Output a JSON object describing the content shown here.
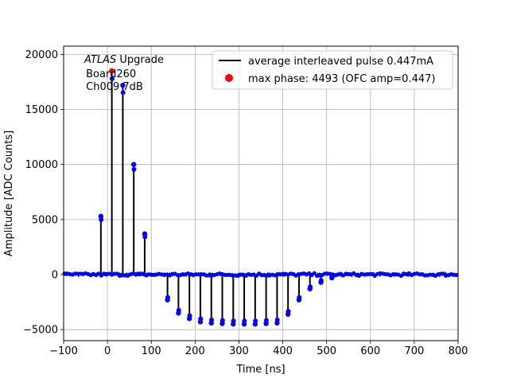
{
  "chart_data": {
    "type": "line",
    "xlabel": "Time [ns]",
    "ylabel": "Amplitude [ADC Counts]",
    "xlim": [
      -100,
      800
    ],
    "ylim": [
      -6000,
      20750
    ],
    "xticks": [
      -100,
      0,
      100,
      200,
      300,
      400,
      500,
      600,
      700,
      800
    ],
    "xtick_labels": [
      "−100",
      "0",
      "100",
      "200",
      "300",
      "400",
      "500",
      "600",
      "700",
      "800"
    ],
    "yticks": [
      -5000,
      0,
      5000,
      10000,
      15000,
      20000
    ],
    "ytick_labels": [
      "−5000",
      "0",
      "5000",
      "10000",
      "15000",
      "20000"
    ],
    "grid": true,
    "legend_position": "top-right",
    "annotation": {
      "italic_part": "ATLAS",
      "line1_rest": " Upgrade",
      "line2": " Board260",
      "line3": " Ch009 7dB"
    },
    "series": [
      {
        "name": "average interleaved pulse 0.447mA",
        "color": "#000000",
        "spike_x": [
          -15,
          10,
          35,
          60,
          85,
          137,
          162,
          187,
          212,
          237,
          262,
          287,
          312,
          337,
          362,
          387,
          412,
          437,
          462,
          487,
          512
        ],
        "spike_y": [
          5300,
          18500,
          17200,
          10000,
          3700,
          -2300,
          -3500,
          -4000,
          -4300,
          -4400,
          -4450,
          -4500,
          -4500,
          -4500,
          -4450,
          -4400,
          -3600,
          -2300,
          -1300,
          -700,
          -300
        ]
      },
      {
        "name": "max phase: 4493 (OFC amp=0.447)",
        "color": "#ff0000",
        "x": [
          10
        ],
        "y": [
          18500
        ]
      }
    ],
    "samples_color": "#0000ff"
  }
}
